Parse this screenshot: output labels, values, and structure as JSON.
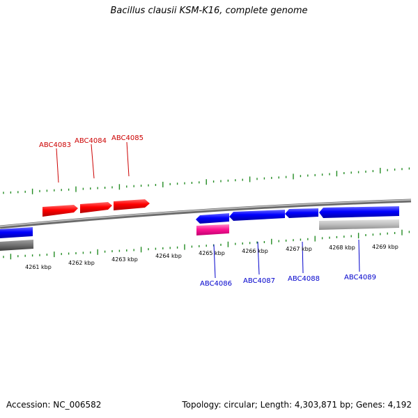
{
  "title": "Bacillus clausii KSM-K16, complete genome",
  "footer": {
    "accession": "Accession: NC_006582",
    "summary": "Topology: circular; Length: 4,303,871 bp; Genes: 4,192"
  },
  "colors": {
    "forward_gene": "#ff0000",
    "reverse_gene": "#0000ff",
    "other_feature": "#ff1493",
    "backbone": "#808080",
    "tick": "#228b22",
    "forward_label": "#cc0000",
    "reverse_label": "#0000cc"
  },
  "scale_labels": [
    "4261 kbp",
    "4262 kbp",
    "4263 kbp",
    "4264 kbp",
    "4265 kbp",
    "4266 kbp",
    "4267 kbp",
    "4268 kbp",
    "4269 kbp"
  ],
  "forward_labels": [
    "ABC4083",
    "ABC4084",
    "ABC4085"
  ],
  "reverse_labels": [
    "ABC4086",
    "ABC4087",
    "ABC4088",
    "ABC4089"
  ]
}
